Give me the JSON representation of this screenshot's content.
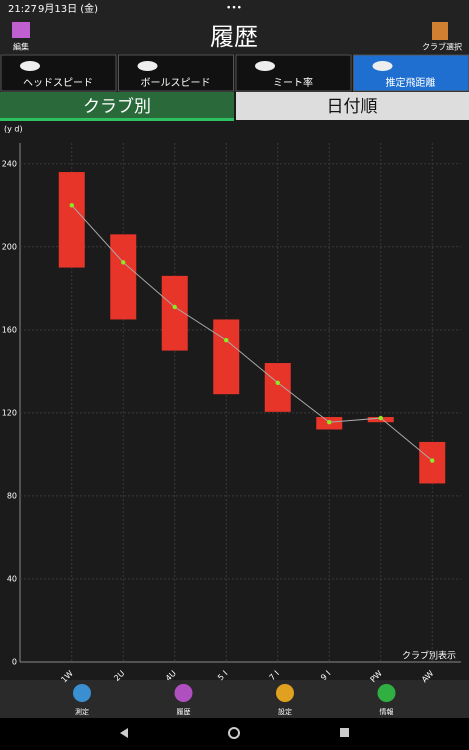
{
  "status_bar": {
    "time": "21:27",
    "date": "9月13日 (金)",
    "dots": "•••"
  },
  "header": {
    "title": "履歴",
    "left": "編集",
    "right": "クラブ選択"
  },
  "metric_tabs": [
    "ヘッドスピード",
    "ボールスピード",
    "ミート率",
    "推定飛距離"
  ],
  "sort_tabs": [
    "クラブ別",
    "日付順"
  ],
  "chart_data": {
    "type": "range_bar",
    "y_label": "(y d)",
    "annotation": "クラブ別表示",
    "categories": [
      "1W",
      "2U",
      "4U",
      "5 I",
      "7 I",
      "9 I",
      "PW",
      "AW"
    ],
    "low": [
      190,
      165,
      150,
      129,
      120.5,
      112,
      115.5,
      86
    ],
    "high": [
      236,
      206,
      186,
      165,
      144,
      118,
      118,
      106
    ],
    "mean": [
      220,
      192.5,
      171,
      155,
      134.5,
      115.5,
      117.5,
      97
    ],
    "color": "#e8352a",
    "mean_color": "#aaaaaa",
    "point_color": "#88ee22",
    "ylim": [
      0,
      250
    ],
    "yticks": [
      0,
      40,
      80,
      120,
      160,
      200,
      240
    ],
    "grid": true
  },
  "bottom_nav": [
    "測定",
    "履歴",
    "設定",
    "情報"
  ]
}
